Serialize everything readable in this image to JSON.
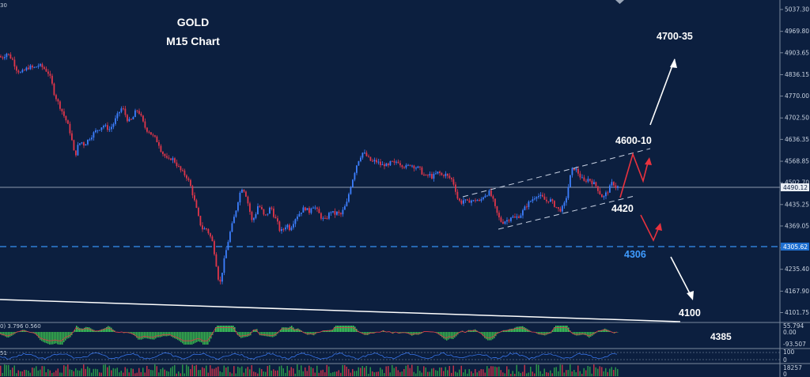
{
  "chart_data": {
    "type": "candlestick",
    "title": "GOLD",
    "subtitle": "M15 Chart",
    "corner_label": "30",
    "ylim": [
      4090,
      5060
    ],
    "y_ticks": [
      "5037.30",
      "4969.80",
      "4903.65",
      "4836.15",
      "4770.00",
      "4702.50",
      "4636.35",
      "4568.85",
      "4502.70",
      "4435.25",
      "4369.05",
      "4301.55",
      "4235.40",
      "4167.90",
      "4101.75"
    ],
    "current_price": "4490.12",
    "support_line_price": "4305.62",
    "candle_path": [
      [
        0,
        4893
      ],
      [
        4,
        4888
      ],
      [
        10,
        4902
      ],
      [
        14,
        4893
      ],
      [
        18,
        4880
      ],
      [
        22,
        4855
      ],
      [
        28,
        4840
      ],
      [
        32,
        4848
      ],
      [
        38,
        4860
      ],
      [
        44,
        4856
      ],
      [
        50,
        4865
      ],
      [
        56,
        4858
      ],
      [
        62,
        4845
      ],
      [
        66,
        4820
      ],
      [
        70,
        4780
      ],
      [
        74,
        4755
      ],
      [
        78,
        4735
      ],
      [
        82,
        4712
      ],
      [
        86,
        4690
      ],
      [
        90,
        4660
      ],
      [
        94,
        4615
      ],
      [
        96,
        4580
      ],
      [
        100,
        4615
      ],
      [
        104,
        4630
      ],
      [
        108,
        4620
      ],
      [
        112,
        4632
      ],
      [
        116,
        4645
      ],
      [
        120,
        4655
      ],
      [
        124,
        4665
      ],
      [
        128,
        4672
      ],
      [
        132,
        4680
      ],
      [
        136,
        4673
      ],
      [
        140,
        4668
      ],
      [
        144,
        4680
      ],
      [
        148,
        4700
      ],
      [
        152,
        4720
      ],
      [
        156,
        4735
      ],
      [
        158,
        4725
      ],
      [
        162,
        4700
      ],
      [
        166,
        4690
      ],
      [
        170,
        4705
      ],
      [
        174,
        4728
      ],
      [
        178,
        4718
      ],
      [
        182,
        4690
      ],
      [
        186,
        4668
      ],
      [
        190,
        4662
      ],
      [
        194,
        4648
      ],
      [
        198,
        4638
      ],
      [
        202,
        4625
      ],
      [
        206,
        4598
      ],
      [
        210,
        4585
      ],
      [
        214,
        4568
      ],
      [
        218,
        4580
      ],
      [
        222,
        4570
      ],
      [
        226,
        4555
      ],
      [
        230,
        4540
      ],
      [
        234,
        4530
      ],
      [
        238,
        4520
      ],
      [
        242,
        4495
      ],
      [
        246,
        4460
      ],
      [
        250,
        4420
      ],
      [
        254,
        4380
      ],
      [
        258,
        4358
      ],
      [
        262,
        4362
      ],
      [
        266,
        4345
      ],
      [
        270,
        4320
      ],
      [
        274,
        4270
      ],
      [
        277,
        4212
      ],
      [
        280,
        4195
      ],
      [
        284,
        4250
      ],
      [
        288,
        4300
      ],
      [
        292,
        4345
      ],
      [
        296,
        4380
      ],
      [
        300,
        4420
      ],
      [
        304,
        4465
      ],
      [
        308,
        4490
      ],
      [
        312,
        4470
      ],
      [
        316,
        4430
      ],
      [
        320,
        4385
      ],
      [
        324,
        4400
      ],
      [
        328,
        4435
      ],
      [
        332,
        4420
      ],
      [
        336,
        4395
      ],
      [
        340,
        4410
      ],
      [
        344,
        4430
      ],
      [
        348,
        4400
      ],
      [
        352,
        4380
      ],
      [
        356,
        4350
      ],
      [
        360,
        4360
      ],
      [
        364,
        4375
      ],
      [
        368,
        4360
      ],
      [
        372,
        4380
      ],
      [
        376,
        4398
      ],
      [
        380,
        4408
      ],
      [
        384,
        4420
      ],
      [
        388,
        4425
      ],
      [
        392,
        4410
      ],
      [
        396,
        4435
      ],
      [
        400,
        4425
      ],
      [
        404,
        4410
      ],
      [
        408,
        4395
      ],
      [
        412,
        4385
      ],
      [
        416,
        4400
      ],
      [
        420,
        4415
      ],
      [
        424,
        4405
      ],
      [
        428,
        4410
      ],
      [
        432,
        4402
      ],
      [
        436,
        4420
      ],
      [
        440,
        4440
      ],
      [
        444,
        4485
      ],
      [
        448,
        4520
      ],
      [
        452,
        4555
      ],
      [
        456,
        4580
      ],
      [
        460,
        4595
      ],
      [
        464,
        4588
      ],
      [
        468,
        4575
      ],
      [
        472,
        4566
      ],
      [
        476,
        4570
      ],
      [
        480,
        4564
      ],
      [
        484,
        4555
      ],
      [
        488,
        4560
      ],
      [
        492,
        4550
      ],
      [
        496,
        4568
      ],
      [
        500,
        4560
      ],
      [
        504,
        4572
      ],
      [
        508,
        4560
      ],
      [
        512,
        4555
      ],
      [
        516,
        4550
      ],
      [
        520,
        4560
      ],
      [
        524,
        4555
      ],
      [
        528,
        4550
      ],
      [
        532,
        4545
      ],
      [
        536,
        4530
      ],
      [
        540,
        4520
      ],
      [
        544,
        4528
      ],
      [
        548,
        4520
      ],
      [
        552,
        4528
      ],
      [
        556,
        4535
      ],
      [
        560,
        4525
      ],
      [
        564,
        4530
      ],
      [
        568,
        4520
      ],
      [
        572,
        4515
      ],
      [
        576,
        4495
      ],
      [
        580,
        4455
      ],
      [
        584,
        4440
      ],
      [
        588,
        4450
      ],
      [
        592,
        4440
      ],
      [
        596,
        4450
      ],
      [
        600,
        4445
      ],
      [
        604,
        4452
      ],
      [
        608,
        4442
      ],
      [
        612,
        4460
      ],
      [
        616,
        4468
      ],
      [
        620,
        4472
      ],
      [
        624,
        4455
      ],
      [
        628,
        4420
      ],
      [
        632,
        4395
      ],
      [
        636,
        4380
      ],
      [
        640,
        4385
      ],
      [
        644,
        4388
      ],
      [
        648,
        4400
      ],
      [
        652,
        4392
      ],
      [
        656,
        4398
      ],
      [
        660,
        4405
      ],
      [
        664,
        4420
      ],
      [
        668,
        4435
      ],
      [
        672,
        4445
      ],
      [
        676,
        4455
      ],
      [
        680,
        4465
      ],
      [
        684,
        4460
      ],
      [
        688,
        4455
      ],
      [
        692,
        4445
      ],
      [
        696,
        4452
      ],
      [
        700,
        4440
      ],
      [
        704,
        4430
      ],
      [
        708,
        4418
      ],
      [
        712,
        4422
      ],
      [
        716,
        4440
      ],
      [
        720,
        4490
      ],
      [
        724,
        4540
      ],
      [
        728,
        4548
      ],
      [
        732,
        4535
      ],
      [
        736,
        4518
      ],
      [
        740,
        4505
      ],
      [
        744,
        4515
      ],
      [
        748,
        4510
      ],
      [
        752,
        4500
      ],
      [
        756,
        4490
      ],
      [
        760,
        4470
      ],
      [
        764,
        4455
      ],
      [
        768,
        4470
      ],
      [
        772,
        4485
      ],
      [
        776,
        4505
      ],
      [
        780,
        4490
      ]
    ],
    "annotations": [
      "4700-35",
      "4600-10",
      "4420",
      "4306",
      "4100",
      "4385"
    ],
    "oscillator_label": "0) 3.796 0.560",
    "oscillator_ticks": [
      "55.794",
      "0.00",
      "-93.507"
    ],
    "indicator2_label": "51",
    "indicator2_ticks": [
      "100",
      "0"
    ],
    "volume_ticks": [
      "18257",
      "0"
    ],
    "grid": false,
    "legend": "none"
  },
  "colors": {
    "background": "#0c1f3f",
    "bull": "#3d7fff",
    "bear": "#e0364a",
    "channel": "#c9d2e3",
    "support": "#2f7fd6",
    "support_label": "#3f9bff",
    "arrow_white": "#ffffff",
    "arrow_red": "#e8323e",
    "osc_pos": "#3ecf5a",
    "osc_neg": "#37b24d"
  }
}
